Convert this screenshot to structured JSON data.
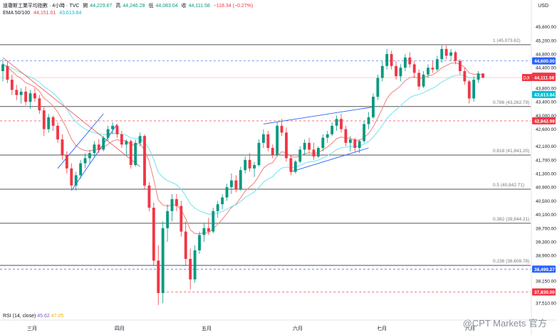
{
  "header": {
    "symbol": "道瓊斯工業平均指數 · 4小時 · TVC",
    "open_label": "開",
    "open": "44,229.67",
    "high_label": "高",
    "high": "44,246.28",
    "low_label": "低",
    "low": "44,083.04",
    "close_label": "收",
    "close": "44,111.58",
    "change": "−118.34 (−0.27%)",
    "ema_label": "EMA 50/100",
    "ema50": "44,151.01",
    "ema100": "43,613.84"
  },
  "currency": "USD",
  "rsi": {
    "label": "RSI (14, close)",
    "value": "45.62",
    "ma": "47.05"
  },
  "watermark": "@CPT Markets 官方",
  "colors": {
    "up": "#089981",
    "down": "#f23645",
    "ema50": "#f28b82",
    "ema100": "#7fe3f0",
    "fib": "#555555",
    "dashed_blue": "#2962ff",
    "dashed_red": "#f23645",
    "trend": "#2962ff",
    "trend_red": "#e36363"
  },
  "chart_data": {
    "type": "candlestick",
    "y_range": [
      37300,
      45800
    ],
    "y_ticks": [
      "45,600.00",
      "45,200.00",
      "44,800.00",
      "44,400.00",
      "43,800.00",
      "43,400.00",
      "43,000.00",
      "42,600.00",
      "42,100.00",
      "41,700.00",
      "41,300.00",
      "40,900.00",
      "40,500.00",
      "40,100.00",
      "39,700.00",
      "39,300.00",
      "38,900.00",
      "38,150.00",
      "37,510.00"
    ],
    "x_labels": [
      "三月",
      "四月",
      "五月",
      "六月",
      "七月",
      "八月"
    ],
    "fib_levels": [
      {
        "label": "1 (45,073.62)",
        "value": 45073.62
      },
      {
        "label": "0.786 (43,262.79)",
        "value": 43262.79
      },
      {
        "label": "0.618 (41,841.20)",
        "value": 41841.2
      },
      {
        "label": "0.5 (40,842.71)",
        "value": 40842.71
      },
      {
        "label": "0.382 (39,844.21)",
        "value": 39844.21
      },
      {
        "label": "0.236 (38,608.78)",
        "value": 38608.78
      }
    ],
    "price_tags": [
      {
        "text": "44,600.00",
        "value": 44600,
        "color": "#2962ff"
      },
      {
        "text": "44,151.01",
        "value": 44151.01,
        "color": "#f23645"
      },
      {
        "text": "44,111.58",
        "value": 44111.58,
        "color": "#f23645",
        "prefix": "DJI"
      },
      {
        "text": "43,613.84",
        "value": 43613.84,
        "color": "#00bcd4"
      },
      {
        "text": "42,842.98",
        "value": 42842.98,
        "color": "#f23645"
      },
      {
        "text": "38,499.27",
        "value": 38499.27,
        "color": "#2962ff"
      },
      {
        "text": "37,830.00",
        "value": 37830,
        "color": "#f23645"
      }
    ],
    "candles": [
      {
        "o": 44300,
        "h": 44650,
        "l": 44000,
        "c": 44500
      },
      {
        "o": 44450,
        "h": 44600,
        "l": 43950,
        "c": 44050
      },
      {
        "o": 44050,
        "h": 44200,
        "l": 43600,
        "c": 43750
      },
      {
        "o": 43750,
        "h": 43900,
        "l": 43450,
        "c": 43600
      },
      {
        "o": 43600,
        "h": 43800,
        "l": 43350,
        "c": 43700
      },
      {
        "o": 43700,
        "h": 43850,
        "l": 43300,
        "c": 43400
      },
      {
        "o": 43400,
        "h": 43750,
        "l": 43200,
        "c": 43650
      },
      {
        "o": 43650,
        "h": 43800,
        "l": 43400,
        "c": 43500
      },
      {
        "o": 43500,
        "h": 43600,
        "l": 43050,
        "c": 43150
      },
      {
        "o": 43150,
        "h": 43250,
        "l": 42400,
        "c": 42600
      },
      {
        "o": 42600,
        "h": 43050,
        "l": 42500,
        "c": 42950
      },
      {
        "o": 42950,
        "h": 43000,
        "l": 42550,
        "c": 42700
      },
      {
        "o": 42700,
        "h": 42800,
        "l": 42200,
        "c": 42300
      },
      {
        "o": 42300,
        "h": 42450,
        "l": 41700,
        "c": 41850
      },
      {
        "o": 41850,
        "h": 41950,
        "l": 41300,
        "c": 41450
      },
      {
        "o": 41450,
        "h": 41600,
        "l": 40850,
        "c": 40950
      },
      {
        "o": 40950,
        "h": 41350,
        "l": 40800,
        "c": 41250
      },
      {
        "o": 41250,
        "h": 41700,
        "l": 41150,
        "c": 41600
      },
      {
        "o": 41600,
        "h": 41900,
        "l": 41450,
        "c": 41750
      },
      {
        "o": 41750,
        "h": 42000,
        "l": 41600,
        "c": 41900
      },
      {
        "o": 41900,
        "h": 42250,
        "l": 41800,
        "c": 42150
      },
      {
        "o": 42150,
        "h": 42300,
        "l": 41900,
        "c": 42000
      },
      {
        "o": 42000,
        "h": 42400,
        "l": 41950,
        "c": 42350
      },
      {
        "o": 42350,
        "h": 42700,
        "l": 42250,
        "c": 42600
      },
      {
        "o": 42600,
        "h": 42800,
        "l": 42450,
        "c": 42700
      },
      {
        "o": 42700,
        "h": 42750,
        "l": 42350,
        "c": 42450
      },
      {
        "o": 42450,
        "h": 42550,
        "l": 42050,
        "c": 42150
      },
      {
        "o": 42150,
        "h": 42300,
        "l": 41850,
        "c": 42250
      },
      {
        "o": 42250,
        "h": 42300,
        "l": 41450,
        "c": 41550
      },
      {
        "o": 41550,
        "h": 42300,
        "l": 41500,
        "c": 42200
      },
      {
        "o": 42200,
        "h": 42500,
        "l": 42100,
        "c": 42400
      },
      {
        "o": 42400,
        "h": 42450,
        "l": 40850,
        "c": 40950
      },
      {
        "o": 40950,
        "h": 41050,
        "l": 40200,
        "c": 40300
      },
      {
        "o": 40300,
        "h": 40450,
        "l": 38600,
        "c": 38750
      },
      {
        "o": 38750,
        "h": 39200,
        "l": 37450,
        "c": 37800
      },
      {
        "o": 37800,
        "h": 39900,
        "l": 37500,
        "c": 39700
      },
      {
        "o": 39700,
        "h": 40400,
        "l": 39300,
        "c": 40200
      },
      {
        "o": 40200,
        "h": 40700,
        "l": 39900,
        "c": 40550
      },
      {
        "o": 40550,
        "h": 40700,
        "l": 40200,
        "c": 40350
      },
      {
        "o": 40350,
        "h": 40500,
        "l": 39450,
        "c": 39600
      },
      {
        "o": 39600,
        "h": 39900,
        "l": 38600,
        "c": 38800
      },
      {
        "o": 38800,
        "h": 39100,
        "l": 37900,
        "c": 38200
      },
      {
        "o": 38200,
        "h": 39200,
        "l": 38100,
        "c": 39050
      },
      {
        "o": 39050,
        "h": 39600,
        "l": 38950,
        "c": 39500
      },
      {
        "o": 39500,
        "h": 39850,
        "l": 39300,
        "c": 39700
      },
      {
        "o": 39700,
        "h": 40000,
        "l": 39500,
        "c": 39600
      },
      {
        "o": 39600,
        "h": 40300,
        "l": 39550,
        "c": 40200
      },
      {
        "o": 40200,
        "h": 40500,
        "l": 40000,
        "c": 40400
      },
      {
        "o": 40400,
        "h": 40700,
        "l": 40250,
        "c": 40600
      },
      {
        "o": 40600,
        "h": 41000,
        "l": 40500,
        "c": 40900
      },
      {
        "o": 40900,
        "h": 41300,
        "l": 40700,
        "c": 41100
      },
      {
        "o": 41100,
        "h": 41250,
        "l": 40750,
        "c": 40850
      },
      {
        "o": 40850,
        "h": 41500,
        "l": 40800,
        "c": 41400
      },
      {
        "o": 41400,
        "h": 41800,
        "l": 41300,
        "c": 41700
      },
      {
        "o": 41700,
        "h": 41900,
        "l": 41350,
        "c": 41450
      },
      {
        "o": 41450,
        "h": 41650,
        "l": 41200,
        "c": 41550
      },
      {
        "o": 41550,
        "h": 42300,
        "l": 41500,
        "c": 42200
      },
      {
        "o": 42200,
        "h": 42600,
        "l": 42050,
        "c": 42450
      },
      {
        "o": 42450,
        "h": 42550,
        "l": 41950,
        "c": 42050
      },
      {
        "o": 42050,
        "h": 42150,
        "l": 41750,
        "c": 41850
      },
      {
        "o": 41850,
        "h": 42800,
        "l": 41800,
        "c": 42700
      },
      {
        "o": 42700,
        "h": 42900,
        "l": 42400,
        "c": 42500
      },
      {
        "o": 42500,
        "h": 42650,
        "l": 41650,
        "c": 41750
      },
      {
        "o": 41750,
        "h": 41850,
        "l": 41250,
        "c": 41350
      },
      {
        "o": 41350,
        "h": 41700,
        "l": 41300,
        "c": 41650
      },
      {
        "o": 41650,
        "h": 42100,
        "l": 41600,
        "c": 42000
      },
      {
        "o": 42000,
        "h": 42300,
        "l": 41850,
        "c": 42200
      },
      {
        "o": 42200,
        "h": 42350,
        "l": 41900,
        "c": 42000
      },
      {
        "o": 42000,
        "h": 42200,
        "l": 41700,
        "c": 41800
      },
      {
        "o": 41800,
        "h": 42100,
        "l": 41750,
        "c": 42050
      },
      {
        "o": 42050,
        "h": 42450,
        "l": 41950,
        "c": 42350
      },
      {
        "o": 42350,
        "h": 42550,
        "l": 42200,
        "c": 42450
      },
      {
        "o": 42450,
        "h": 42800,
        "l": 42400,
        "c": 42700
      },
      {
        "o": 42700,
        "h": 43000,
        "l": 42550,
        "c": 42900
      },
      {
        "o": 42900,
        "h": 43050,
        "l": 42500,
        "c": 42600
      },
      {
        "o": 42600,
        "h": 42700,
        "l": 42100,
        "c": 42200
      },
      {
        "o": 42200,
        "h": 42400,
        "l": 41950,
        "c": 42300
      },
      {
        "o": 42300,
        "h": 42350,
        "l": 41950,
        "c": 42050
      },
      {
        "o": 42050,
        "h": 42300,
        "l": 41900,
        "c": 42250
      },
      {
        "o": 42250,
        "h": 42850,
        "l": 42200,
        "c": 42750
      },
      {
        "o": 42750,
        "h": 43100,
        "l": 42600,
        "c": 42950
      },
      {
        "o": 42950,
        "h": 43650,
        "l": 42900,
        "c": 43550
      },
      {
        "o": 43550,
        "h": 44200,
        "l": 43450,
        "c": 44100
      },
      {
        "o": 44100,
        "h": 44600,
        "l": 44000,
        "c": 44450
      },
      {
        "o": 44450,
        "h": 44950,
        "l": 44350,
        "c": 44800
      },
      {
        "o": 44800,
        "h": 44900,
        "l": 44350,
        "c": 44450
      },
      {
        "o": 44450,
        "h": 44600,
        "l": 44050,
        "c": 44150
      },
      {
        "o": 44150,
        "h": 44500,
        "l": 44000,
        "c": 44400
      },
      {
        "o": 44400,
        "h": 44800,
        "l": 44300,
        "c": 44700
      },
      {
        "o": 44700,
        "h": 44850,
        "l": 44400,
        "c": 44500
      },
      {
        "o": 44500,
        "h": 44600,
        "l": 44100,
        "c": 44250
      },
      {
        "o": 44250,
        "h": 44350,
        "l": 43750,
        "c": 43850
      },
      {
        "o": 43850,
        "h": 44300,
        "l": 43800,
        "c": 44200
      },
      {
        "o": 44200,
        "h": 44500,
        "l": 44100,
        "c": 44400
      },
      {
        "o": 44400,
        "h": 44600,
        "l": 44250,
        "c": 44350
      },
      {
        "o": 44350,
        "h": 44750,
        "l": 44300,
        "c": 44650
      },
      {
        "o": 44650,
        "h": 45050,
        "l": 44550,
        "c": 44950
      },
      {
        "o": 44950,
        "h": 45050,
        "l": 44650,
        "c": 44750
      },
      {
        "o": 44750,
        "h": 44950,
        "l": 44600,
        "c": 44850
      },
      {
        "o": 44850,
        "h": 44900,
        "l": 44500,
        "c": 44600
      },
      {
        "o": 44600,
        "h": 44650,
        "l": 44200,
        "c": 44300
      },
      {
        "o": 44300,
        "h": 44400,
        "l": 43900,
        "c": 44000
      },
      {
        "o": 44000,
        "h": 44050,
        "l": 43350,
        "c": 43500
      },
      {
        "o": 43500,
        "h": 44150,
        "l": 43400,
        "c": 44050
      },
      {
        "o": 44050,
        "h": 44300,
        "l": 43950,
        "c": 44230
      },
      {
        "o": 44230,
        "h": 44246,
        "l": 44083,
        "c": 44111
      }
    ]
  }
}
